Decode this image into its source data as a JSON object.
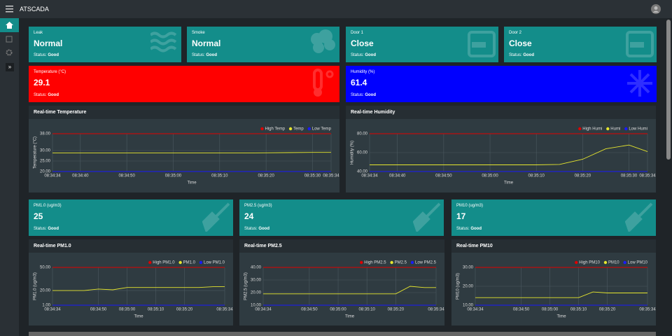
{
  "topbar": {
    "title": "ATSCADA"
  },
  "cards": [
    {
      "label": "Leak",
      "value": "Normal",
      "status_label": "Status:",
      "status": "Good"
    },
    {
      "label": "Smoke",
      "value": "Normal",
      "status_label": "Status:",
      "status": "Good"
    },
    {
      "label": "Door 1",
      "value": "Close",
      "status_label": "Status:",
      "status": "Good"
    },
    {
      "label": "Door 2",
      "value": "Close",
      "status_label": "Status:",
      "status": "Good"
    }
  ],
  "sensors": [
    {
      "label": "Temperature (°C)",
      "value": 29.1,
      "status_label": "Status:",
      "status": "Good",
      "color": "#ff0000"
    },
    {
      "label": "Humidity (%)",
      "value": 61.4,
      "status_label": "Status:",
      "status": "Good",
      "color": "#0000ff"
    }
  ],
  "pm_cards": [
    {
      "label": "PM1.0 (ug/m3)",
      "value": 25,
      "status_label": "Status:",
      "status": "Good"
    },
    {
      "label": "PM2.5 (ug/m3)",
      "value": 24,
      "status_label": "Status:",
      "status": "Good"
    },
    {
      "label": "PM10 (ug/m3)",
      "value": 17,
      "status_label": "Status:",
      "status": "Good"
    }
  ],
  "charts": [
    {
      "type": "line",
      "title": "Real-time Temperature",
      "y_label": "Temperature (°C)",
      "x_label": "Time",
      "x": [
        "08:34:34",
        "08:34:40",
        "08:34:45",
        "08:34:50",
        "08:34:55",
        "08:35:00",
        "08:35:05",
        "08:35:10",
        "08:35:15",
        "08:35:20",
        "08:35:25",
        "08:35:30",
        "08:35:34"
      ],
      "xlim": [
        "08:34:34",
        "08:35:34"
      ],
      "xticks": [
        "08:34:34",
        "08:34:40",
        "08:34:50",
        "08:35:00",
        "08:35:10",
        "08:35:20",
        "08:35:30",
        "08:35:34"
      ],
      "ylim": [
        20,
        38
      ],
      "yticks": [
        {
          "value": 20,
          "label": "20.00"
        },
        {
          "value": 25,
          "label": "25.00"
        },
        {
          "value": 30,
          "label": "30.00"
        },
        {
          "value": 38,
          "label": "38.00"
        }
      ],
      "legend": "top-right",
      "series": [
        {
          "name": "High Temp",
          "color": "#e00000",
          "values": [
            38,
            38,
            38,
            38,
            38,
            38,
            38,
            38,
            38,
            38,
            38,
            38,
            38
          ]
        },
        {
          "name": "Temp",
          "color": "#e6e62e",
          "values": [
            28.8,
            28.8,
            28.8,
            28.8,
            28.8,
            28.8,
            28.8,
            28.8,
            28.8,
            28.9,
            29.0,
            29.1,
            29.1
          ]
        },
        {
          "name": "Low Temp",
          "color": "#1a1aff",
          "values": [
            20,
            20,
            20,
            20,
            20,
            20,
            20,
            20,
            20,
            20,
            20,
            20,
            20
          ]
        }
      ]
    },
    {
      "type": "line",
      "title": "Real-time Humidity",
      "y_label": "Humidity (%)",
      "x_label": "Time",
      "x": [
        "08:34:34",
        "08:34:40",
        "08:34:45",
        "08:34:50",
        "08:34:55",
        "08:35:00",
        "08:35:05",
        "08:35:10",
        "08:35:15",
        "08:35:20",
        "08:35:25",
        "08:35:30",
        "08:35:34"
      ],
      "xlim": [
        "08:34:34",
        "08:35:34"
      ],
      "xticks": [
        "08:34:34",
        "08:34:40",
        "08:34:50",
        "08:35:00",
        "08:35:10",
        "08:35:20",
        "08:35:30",
        "08:35:34"
      ],
      "ylim": [
        40,
        80
      ],
      "yticks": [
        {
          "value": 40,
          "label": "40.00"
        },
        {
          "value": 60,
          "label": "60.00"
        },
        {
          "value": 80,
          "label": "80.00"
        }
      ],
      "legend": "top-right",
      "series": [
        {
          "name": "High Humi",
          "color": "#e00000",
          "values": [
            80,
            80,
            80,
            80,
            80,
            80,
            80,
            80,
            80,
            80,
            80,
            80,
            80
          ]
        },
        {
          "name": "Humi",
          "color": "#e6e62e",
          "values": [
            47,
            47,
            47,
            47,
            47,
            47,
            47,
            47,
            47.5,
            53,
            64,
            68,
            61
          ]
        },
        {
          "name": "Low Humi",
          "color": "#1a1aff",
          "values": [
            40,
            40,
            40,
            40,
            40,
            40,
            40,
            40,
            40,
            40,
            40,
            40,
            40
          ]
        }
      ]
    },
    {
      "type": "line",
      "title": "Real-time PM1.0",
      "y_label": "PM1.0 (ug/m3)",
      "x_label": "Time",
      "x": [
        "08:34:34",
        "08:34:40",
        "08:34:45",
        "08:34:50",
        "08:34:55",
        "08:35:00",
        "08:35:05",
        "08:35:10",
        "08:35:15",
        "08:35:20",
        "08:35:25",
        "08:35:30",
        "08:35:34"
      ],
      "xlim": [
        "08:34:34",
        "08:35:34"
      ],
      "xticks": [
        "08:34:34",
        "08:34:50",
        "08:35:00",
        "08:35:10",
        "08:35:20",
        "08:35:34"
      ],
      "ylim": [
        1,
        50
      ],
      "yticks": [
        {
          "value": 1,
          "label": "1.00"
        },
        {
          "value": 20,
          "label": "20.00"
        },
        {
          "value": 50,
          "label": "50.00"
        }
      ],
      "legend": "top-right",
      "series": [
        {
          "name": "High PM1.0",
          "color": "#e00000",
          "values": [
            50,
            50,
            50,
            50,
            50,
            50,
            50,
            50,
            50,
            50,
            50,
            50,
            50
          ]
        },
        {
          "name": "PM1.0",
          "color": "#e6e62e",
          "values": [
            20,
            20,
            20,
            22,
            21,
            24,
            24,
            24,
            24,
            24,
            24,
            25,
            25
          ]
        },
        {
          "name": "Low PM1.0",
          "color": "#1a1aff",
          "values": [
            1,
            1,
            1,
            1,
            1,
            1,
            1,
            1,
            1,
            1,
            1,
            1,
            1
          ]
        }
      ]
    },
    {
      "type": "line",
      "title": "Real-time PM2.5",
      "y_label": "PM2.5 (ug/m3)",
      "x_label": "Time",
      "x": [
        "08:34:34",
        "08:34:40",
        "08:34:45",
        "08:34:50",
        "08:34:55",
        "08:35:00",
        "08:35:05",
        "08:35:10",
        "08:35:15",
        "08:35:20",
        "08:35:25",
        "08:35:30",
        "08:35:34"
      ],
      "xlim": [
        "08:34:34",
        "08:35:34"
      ],
      "xticks": [
        "08:34:34",
        "08:34:50",
        "08:35:00",
        "08:35:10",
        "08:35:20",
        "08:35:34"
      ],
      "ylim": [
        10,
        40
      ],
      "yticks": [
        {
          "value": 10,
          "label": "10.00"
        },
        {
          "value": 20,
          "label": "20.00"
        },
        {
          "value": 30,
          "label": "30.00"
        },
        {
          "value": 40,
          "label": "40.00"
        }
      ],
      "legend": "top-right",
      "series": [
        {
          "name": "High PM2.5",
          "color": "#e00000",
          "values": [
            40,
            40,
            40,
            40,
            40,
            40,
            40,
            40,
            40,
            40,
            40,
            40,
            40
          ]
        },
        {
          "name": "PM2.5",
          "color": "#e6e62e",
          "values": [
            19,
            19,
            19,
            19,
            19,
            19,
            19,
            19,
            19,
            19,
            25,
            24,
            24
          ]
        },
        {
          "name": "Low PM2.5",
          "color": "#1a1aff",
          "values": [
            10,
            10,
            10,
            10,
            10,
            10,
            10,
            10,
            10,
            10,
            10,
            10,
            10
          ]
        }
      ]
    },
    {
      "type": "line",
      "title": "Real-time PM10",
      "y_label": "PM10 (ug/m3)",
      "x_label": "Time",
      "x": [
        "08:34:34",
        "08:34:40",
        "08:34:45",
        "08:34:50",
        "08:34:55",
        "08:35:00",
        "08:35:05",
        "08:35:10",
        "08:35:15",
        "08:35:20",
        "08:35:25",
        "08:35:30",
        "08:35:34"
      ],
      "xlim": [
        "08:34:34",
        "08:35:34"
      ],
      "xticks": [
        "08:34:34",
        "08:34:50",
        "08:35:00",
        "08:35:10",
        "08:35:20",
        "08:35:34"
      ],
      "ylim": [
        10,
        30
      ],
      "yticks": [
        {
          "value": 10,
          "label": "10.00"
        },
        {
          "value": 20,
          "label": "20.00"
        },
        {
          "value": 30,
          "label": "30.00"
        }
      ],
      "legend": "top-right",
      "series": [
        {
          "name": "High PM10",
          "color": "#e00000",
          "values": [
            30,
            30,
            30,
            30,
            30,
            30,
            30,
            30,
            30,
            30,
            30,
            30,
            30
          ]
        },
        {
          "name": "PM10",
          "color": "#e6e62e",
          "values": [
            14,
            14,
            14,
            14,
            14,
            14,
            14,
            14,
            17,
            16.5,
            16.5,
            16.5,
            16.5
          ]
        },
        {
          "name": "Low PM10",
          "color": "#1a1aff",
          "values": [
            10,
            10,
            10,
            10,
            10,
            10,
            10,
            10,
            10,
            10,
            10,
            10,
            10
          ]
        }
      ]
    }
  ]
}
